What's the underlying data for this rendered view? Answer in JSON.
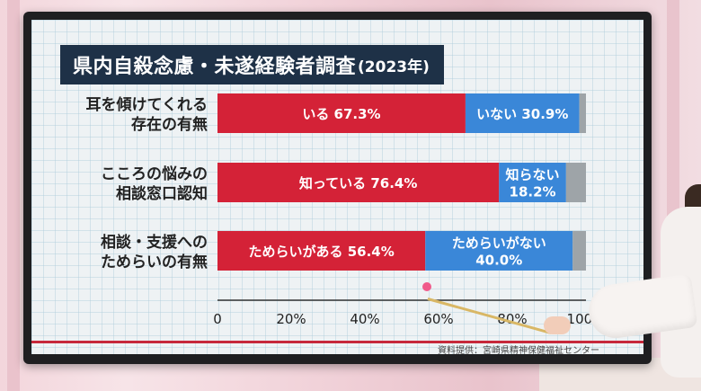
{
  "title": {
    "main": "県内自殺念慮・未遂経験者調査",
    "sub": "(2023年)"
  },
  "source": "資料提供：宮崎県精神保健福祉センター",
  "colors": {
    "red": "#d42237",
    "blue": "#3a87d8",
    "gray": "#9ea4a8",
    "title_bg": "#1e3147",
    "axis_label": "#222222"
  },
  "chart_data": {
    "type": "bar",
    "orientation": "horizontal",
    "stacked": true,
    "xlim": [
      0,
      100
    ],
    "xticks": [
      "0",
      "20%",
      "40%",
      "60%",
      "80%",
      "100%"
    ],
    "categories": [
      [
        "耳を傾けてくれる",
        "存在の有無"
      ],
      [
        "こころの悩みの",
        "相談窓口認知"
      ],
      [
        "相談・支援への",
        "ためらいの有無"
      ]
    ],
    "rows": [
      {
        "segments": [
          {
            "label": [
              "いる 67.3%"
            ],
            "value": 67.3,
            "color": "red"
          },
          {
            "label": [
              "いない 30.9%"
            ],
            "value": 30.9,
            "color": "blue"
          },
          {
            "label": [],
            "value": 1.8,
            "color": "gray"
          }
        ]
      },
      {
        "segments": [
          {
            "label": [
              "知っている 76.4%"
            ],
            "value": 76.4,
            "color": "red"
          },
          {
            "label": [
              "知らない",
              "18.2%"
            ],
            "value": 18.2,
            "color": "blue"
          },
          {
            "label": [],
            "value": 5.4,
            "color": "gray"
          }
        ]
      },
      {
        "segments": [
          {
            "label": [
              "ためらいがある 56.4%"
            ],
            "value": 56.4,
            "color": "red"
          },
          {
            "label": [
              "ためらいがない",
              "40.0%"
            ],
            "value": 40.0,
            "color": "blue"
          },
          {
            "label": [],
            "value": 3.6,
            "color": "gray"
          }
        ]
      }
    ]
  }
}
